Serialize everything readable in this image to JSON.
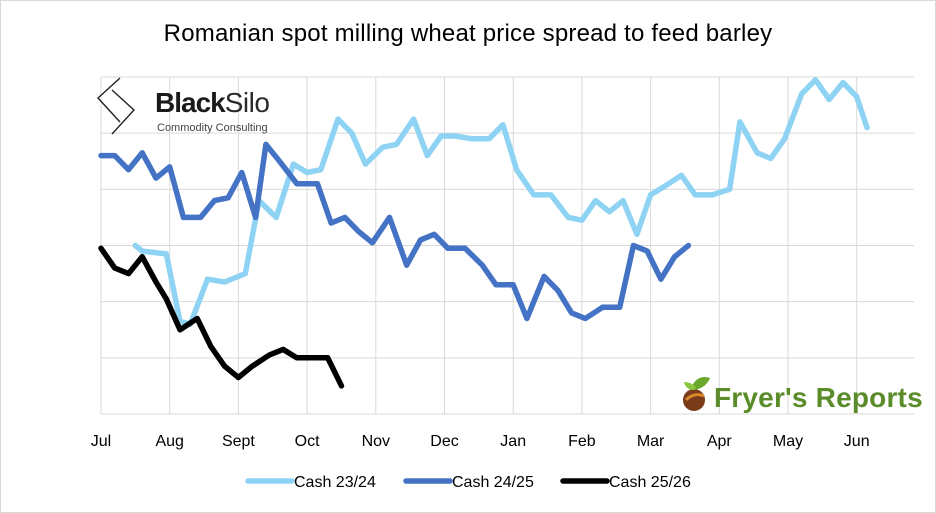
{
  "chart_data": {
    "type": "line",
    "title": "Romanian spot milling wheat price spread to feed barley",
    "xlabel": "",
    "ylabel": "",
    "x_tick_labels": [
      "Jul",
      "Aug",
      "Sept",
      "Oct",
      "Nov",
      "Dec",
      "Jan",
      "Feb",
      "Mar",
      "Apr",
      "May",
      "Jun"
    ],
    "y_gridlines": 6,
    "ylim": [
      0,
      6
    ],
    "legend_position": "bottom",
    "series": [
      {
        "name": "Cash 23/24",
        "color": "#8fd3f4",
        "points": [
          [
            0.5,
            3.0
          ],
          [
            0.6,
            2.9
          ],
          [
            0.95,
            2.85
          ],
          [
            1.15,
            1.65
          ],
          [
            1.3,
            1.6
          ],
          [
            1.55,
            2.4
          ],
          [
            1.8,
            2.35
          ],
          [
            2.1,
            2.5
          ],
          [
            2.3,
            3.8
          ],
          [
            2.55,
            3.5
          ],
          [
            2.8,
            4.45
          ],
          [
            3.0,
            4.3
          ],
          [
            3.2,
            4.35
          ],
          [
            3.45,
            5.25
          ],
          [
            3.65,
            5.0
          ],
          [
            3.85,
            4.45
          ],
          [
            4.1,
            4.75
          ],
          [
            4.3,
            4.8
          ],
          [
            4.55,
            5.25
          ],
          [
            4.75,
            4.6
          ],
          [
            4.95,
            4.95
          ],
          [
            5.15,
            4.95
          ],
          [
            5.4,
            4.9
          ],
          [
            5.65,
            4.9
          ],
          [
            5.85,
            5.15
          ],
          [
            6.05,
            4.35
          ],
          [
            6.3,
            3.9
          ],
          [
            6.55,
            3.9
          ],
          [
            6.8,
            3.5
          ],
          [
            7.0,
            3.45
          ],
          [
            7.2,
            3.8
          ],
          [
            7.4,
            3.6
          ],
          [
            7.6,
            3.8
          ],
          [
            7.8,
            3.2
          ],
          [
            8.0,
            3.9
          ],
          [
            8.2,
            4.05
          ],
          [
            8.45,
            4.25
          ],
          [
            8.65,
            3.9
          ],
          [
            8.9,
            3.9
          ],
          [
            9.15,
            4.0
          ],
          [
            9.3,
            5.2
          ],
          [
            9.55,
            4.65
          ],
          [
            9.75,
            4.55
          ],
          [
            9.95,
            4.9
          ],
          [
            10.2,
            5.7
          ],
          [
            10.4,
            5.95
          ],
          [
            10.6,
            5.6
          ],
          [
            10.8,
            5.9
          ],
          [
            11.0,
            5.65
          ],
          [
            11.15,
            5.1
          ]
        ]
      },
      {
        "name": "Cash 24/25",
        "color": "#4472c4",
        "points": [
          [
            0.0,
            4.6
          ],
          [
            0.2,
            4.6
          ],
          [
            0.4,
            4.35
          ],
          [
            0.6,
            4.65
          ],
          [
            0.8,
            4.2
          ],
          [
            1.0,
            4.4
          ],
          [
            1.2,
            3.5
          ],
          [
            1.45,
            3.5
          ],
          [
            1.65,
            3.8
          ],
          [
            1.85,
            3.85
          ],
          [
            2.05,
            4.3
          ],
          [
            2.25,
            3.5
          ],
          [
            2.4,
            4.8
          ],
          [
            2.6,
            4.5
          ],
          [
            2.85,
            4.1
          ],
          [
            3.15,
            4.1
          ],
          [
            3.35,
            3.4
          ],
          [
            3.55,
            3.5
          ],
          [
            3.75,
            3.25
          ],
          [
            3.95,
            3.05
          ],
          [
            4.2,
            3.5
          ],
          [
            4.45,
            2.65
          ],
          [
            4.65,
            3.1
          ],
          [
            4.85,
            3.2
          ],
          [
            5.05,
            2.95
          ],
          [
            5.3,
            2.95
          ],
          [
            5.55,
            2.65
          ],
          [
            5.75,
            2.3
          ],
          [
            6.0,
            2.3
          ],
          [
            6.2,
            1.7
          ],
          [
            6.45,
            2.45
          ],
          [
            6.65,
            2.2
          ],
          [
            6.85,
            1.8
          ],
          [
            7.05,
            1.7
          ],
          [
            7.3,
            1.9
          ],
          [
            7.55,
            1.9
          ],
          [
            7.75,
            3.0
          ],
          [
            7.95,
            2.9
          ],
          [
            8.15,
            2.4
          ],
          [
            8.35,
            2.8
          ],
          [
            8.55,
            3.0
          ]
        ]
      },
      {
        "name": "Cash 25/26",
        "color": "#000000",
        "points": [
          [
            0.0,
            2.95
          ],
          [
            0.2,
            2.6
          ],
          [
            0.4,
            2.5
          ],
          [
            0.6,
            2.8
          ],
          [
            0.8,
            2.35
          ],
          [
            0.95,
            2.05
          ],
          [
            1.15,
            1.5
          ],
          [
            1.4,
            1.7
          ],
          [
            1.6,
            1.2
          ],
          [
            1.8,
            0.85
          ],
          [
            2.0,
            0.65
          ],
          [
            2.2,
            0.85
          ],
          [
            2.45,
            1.05
          ],
          [
            2.65,
            1.15
          ],
          [
            2.85,
            1.0
          ],
          [
            3.05,
            1.0
          ],
          [
            3.3,
            1.0
          ],
          [
            3.5,
            0.5
          ]
        ]
      }
    ]
  },
  "logos": {
    "blacksilo_black": "Black",
    "blacksilo_silo": "Silo",
    "blacksilo_sub": "Commodity Consulting",
    "fryers": "Fryer's Reports"
  }
}
